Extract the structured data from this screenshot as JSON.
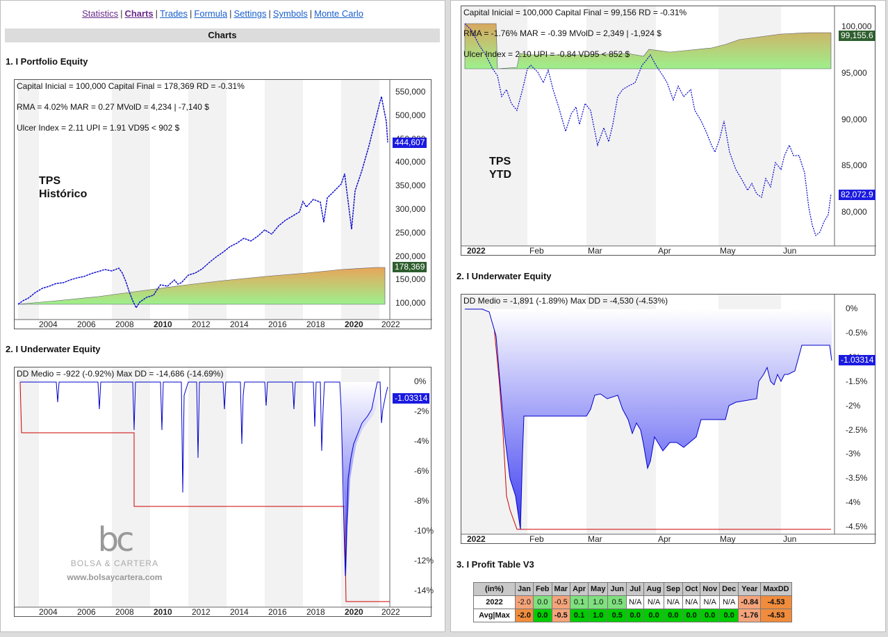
{
  "nav": {
    "items": [
      {
        "label": "Statistics",
        "state": "visited"
      },
      {
        "label": "Charts",
        "state": "active"
      },
      {
        "label": "Trades",
        "state": "link"
      },
      {
        "label": "Formula",
        "state": "link"
      },
      {
        "label": "Settings",
        "state": "link"
      },
      {
        "label": "Symbols",
        "state": "link"
      },
      {
        "label": "Monte Carlo",
        "state": "link"
      }
    ],
    "separator": "|"
  },
  "section_bar": "Charts",
  "left": {
    "equity": {
      "heading": "1. I Portfolio Equity",
      "info1": "Capital Inicial = 100,000  Capital Final = 178,369   RD = -0.31%",
      "info2": "RMA = 4.02%   MAR = 0.27   MVolD = 4,234 | -7,140 $",
      "info3": "Ulcer Index = 2.11   UPI = 1.91   VD95 < 902 $",
      "label1": "TPS",
      "label2": "Histórico",
      "yticks": [
        "550,000",
        "500,000",
        "450,000",
        "400,000",
        "350,000",
        "300,000",
        "250,000",
        "200,000",
        "150,000",
        "100,000"
      ],
      "xticks": [
        "2004",
        "2006",
        "2008",
        "2010",
        "2012",
        "2014",
        "2016",
        "2018",
        "2020",
        "2022"
      ],
      "badge_blue": "444,607",
      "badge_green": "178,369"
    },
    "underwater": {
      "heading": "2. I Underwater Equity",
      "info": "DD Medio = -922 (-0.92%)      Max DD = -14,686 (-14.69%)",
      "yticks": [
        "0%",
        "-2%",
        "-4%",
        "-6%",
        "-8%",
        "-10%",
        "-12%",
        "-14%"
      ],
      "xticks": [
        "2004",
        "2006",
        "2008",
        "2010",
        "2012",
        "2014",
        "2016",
        "2018",
        "2020",
        "2022"
      ],
      "badge_blue": "-1.03314"
    },
    "watermark": {
      "logo": "bc",
      "name": "BOLSA & CARTERA",
      "url": "www.bolsaycartera.com"
    }
  },
  "right": {
    "equity": {
      "info1": "Capital Inicial = 100,000  Capital Final = 99,156   RD = -0.31%",
      "info2": "RMA = -1.76%   MAR = -0.39   MVolD = 2,349 | -1,924 $",
      "info3": "Ulcer Index = 2.10   UPI = -0.84   VD95 < 852 $",
      "label1": "TPS",
      "label2": "YTD",
      "yticks": [
        "100,000",
        "95,000",
        "90,000",
        "85,000",
        "80,000"
      ],
      "xticks": [
        "2022",
        "Feb",
        "Mar",
        "Apr",
        "May",
        "Jun"
      ],
      "badge_green": "99,155.6",
      "badge_blue": "82,072.9"
    },
    "underwater": {
      "heading": "2. I Underwater Equity",
      "info": "DD Medio = -1,891 (-1.89%)      Max DD = -4,530 (-4.53%)",
      "yticks": [
        "0%",
        "-0.5%",
        "-1%",
        "-1.5%",
        "-2%",
        "-2.5%",
        "-3%",
        "-3.5%",
        "-4%",
        "-4.5%"
      ],
      "xticks": [
        "2022",
        "Feb",
        "Mar",
        "Apr",
        "May",
        "Jun"
      ],
      "badge_blue": "-1.03314"
    },
    "profit": {
      "heading": "3. I Profit Table V3",
      "headers": [
        "(in%)",
        "Jan",
        "Feb",
        "Mar",
        "Apr",
        "May",
        "Jun",
        "Jul",
        "Aug",
        "Sep",
        "Oct",
        "Nov",
        "Dec",
        "Year",
        "MaxDD"
      ],
      "rows": [
        {
          "label": "2022",
          "cells": [
            "-2.0",
            "0.0",
            "-0.5",
            "0.1",
            "1.0",
            "0.5",
            "N/A",
            "N/A",
            "N/A",
            "N/A",
            "N/A",
            "N/A",
            "-0.84",
            "-4.53"
          ]
        },
        {
          "label": "Avg|Max",
          "cells": [
            "-2.0",
            "0.0",
            "-0.5",
            "0.1",
            "1.0",
            "0.5",
            "0.0",
            "0.0",
            "0.0",
            "0.0",
            "0.0",
            "0.0",
            "-1.76",
            "-4.53"
          ]
        }
      ]
    }
  },
  "colors": {
    "link": "#1a5fcc",
    "active": "#6a2a8a",
    "equity_line": "#0000cc",
    "drawdown_line": "#cc0000",
    "cell_orange": "#f4a37a",
    "cell_light_green": "#7ee07e",
    "cell_green": "#00cc00",
    "cell_deep_orange": "#f08c3c",
    "cell_yellow": "#ffff33"
  }
}
